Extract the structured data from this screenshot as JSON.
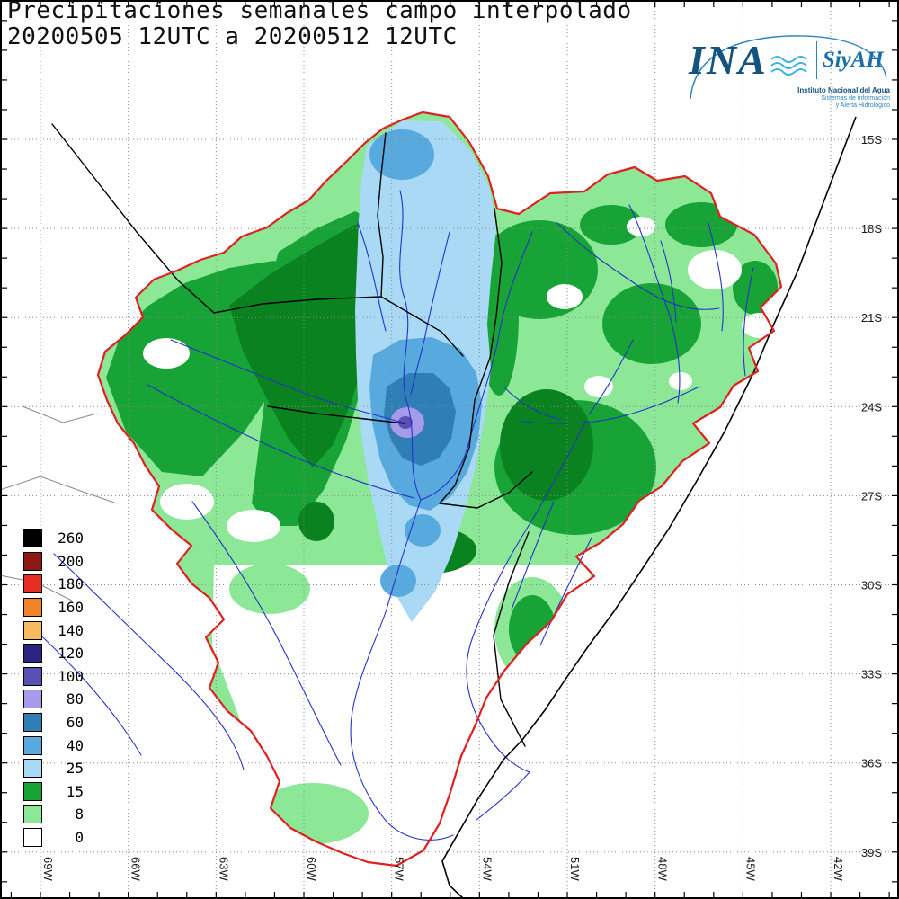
{
  "title": {
    "line1": "Precipitaciones semanales campo interpolado",
    "line2": "20200505 12UTC a 20200512 12UTC"
  },
  "logo": {
    "acronym": "INA",
    "product": "SiyAH",
    "org": "Instituto Nacional del Agua",
    "tagline1": "Sistemas de información",
    "tagline2": "y Alerta Hidrológico"
  },
  "legend": {
    "entries": [
      {
        "value": "260",
        "color": "#000000"
      },
      {
        "value": "200",
        "color": "#8c1a12"
      },
      {
        "value": "180",
        "color": "#e62e24"
      },
      {
        "value": "160",
        "color": "#f08228"
      },
      {
        "value": "140",
        "color": "#f6bb60"
      },
      {
        "value": "120",
        "color": "#2b2482"
      },
      {
        "value": "100",
        "color": "#5a50b4"
      },
      {
        "value": "80",
        "color": "#a79aea"
      },
      {
        "value": "60",
        "color": "#2f7fb6"
      },
      {
        "value": "40",
        "color": "#58a9dd"
      },
      {
        "value": "25",
        "color": "#a9d9f4"
      },
      {
        "value": "15",
        "color": "#17a335"
      },
      {
        "value": "8",
        "color": "#8ce896"
      },
      {
        "value": "0",
        "color": "#ffffff"
      }
    ]
  },
  "axes": {
    "lon_labels": [
      "69W",
      "66W",
      "63W",
      "60W",
      "57W",
      "54W",
      "51W",
      "48W",
      "45W",
      "42W"
    ],
    "lat_labels": [
      "15S",
      "18S",
      "21S",
      "24S",
      "27S",
      "30S",
      "33S",
      "36S",
      "39S"
    ]
  },
  "map": {
    "outline_color": "#e02020",
    "border_color": "#000000",
    "river_color": "#2433cc",
    "coast_color": "#000000",
    "grid_color": "#8a8a8a",
    "faint_color": "#888888",
    "frame_color": "#000000",
    "dark_green": "#0b8220"
  }
}
